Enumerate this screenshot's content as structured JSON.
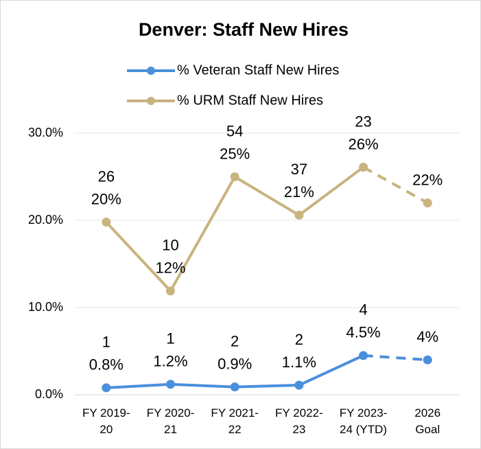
{
  "chart_data": {
    "type": "line",
    "title": "Denver: Staff New Hires",
    "categories": [
      "FY 2019-20",
      "FY 2020-21",
      "FY 2021-22",
      "FY 2022-23",
      "FY 2023-24 (YTD)",
      "2026 Goal"
    ],
    "series": [
      {
        "name": "% Veteran Staff New Hires",
        "color": "#4a8fdc",
        "values": [
          0.8,
          1.2,
          0.9,
          1.1,
          4.5,
          4
        ],
        "value_labels": [
          "0.8%",
          "1.2%",
          "0.9%",
          "1.1%",
          "4.5%",
          "4%"
        ],
        "counts": [
          1,
          1,
          2,
          2,
          4,
          null
        ]
      },
      {
        "name": "% URM Staff New Hires",
        "color": "#c9b37e",
        "values": [
          19.8,
          11.9,
          25,
          20.6,
          26.1,
          22
        ],
        "value_labels": [
          "20%",
          "12%",
          "25%",
          "21%",
          "26%",
          "22%"
        ],
        "counts": [
          26,
          10,
          54,
          37,
          23,
          null
        ]
      }
    ],
    "dashed_from_index": 4,
    "ylim": [
      0,
      30
    ],
    "yticks": [
      {
        "value": 0,
        "label": "0.0%"
      },
      {
        "value": 10,
        "label": "10.0%"
      },
      {
        "value": 20,
        "label": "20.0%"
      },
      {
        "value": 30,
        "label": "30.0%"
      }
    ],
    "grid": true
  }
}
